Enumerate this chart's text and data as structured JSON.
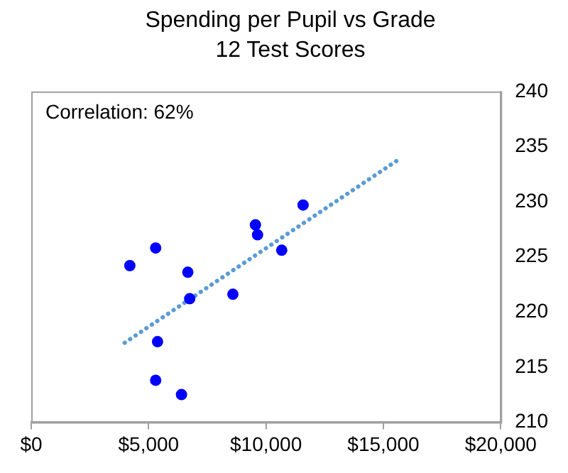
{
  "chart_data": {
    "type": "scatter",
    "title": "Spending per Pupil vs Grade 12 Test Scores",
    "series": [
      {
        "color": "#0000ff",
        "x": [
          4200,
          5300,
          6670,
          6750,
          8590,
          9550,
          9640,
          10670,
          11580,
          5380,
          5300,
          6400
        ],
        "values": [
          224.2,
          225.8,
          223.6,
          221.2,
          221.6,
          227.9,
          227.0,
          225.6,
          229.7,
          217.3,
          213.8,
          212.5
        ],
        "marker": "circle"
      },
      {
        "type": "line",
        "color": "#5b9bd5",
        "x": [
          3980,
          15560
        ],
        "values": [
          217.2,
          233.7
        ],
        "line_style": "dotted",
        "marker": "none"
      }
    ],
    "xlim": [
      0,
      20000
    ],
    "xticks": [
      {
        "value": 0,
        "label": "$0"
      },
      {
        "value": 5000,
        "label": "$5,000"
      },
      {
        "value": 10000,
        "label": "$10,000"
      },
      {
        "value": 15000,
        "label": "$15,000"
      },
      {
        "value": 20000,
        "label": "$20,000"
      }
    ],
    "ylim": [
      210,
      240
    ],
    "yticks": [
      210,
      215,
      220,
      225,
      230,
      235,
      240
    ],
    "grid": false,
    "legend": false,
    "annotations": [
      "Correlation: 62%"
    ]
  }
}
